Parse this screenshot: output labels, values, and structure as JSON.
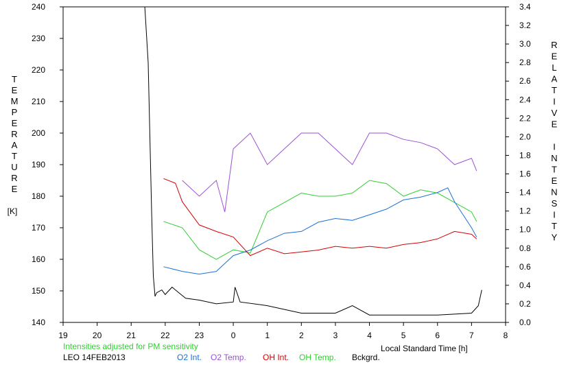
{
  "chart_data": {
    "type": "line",
    "xlabel": "Local Standard Time [h]",
    "ylabel_left": "TEMPERATURE",
    "ylabel_left_unit": "[K]",
    "ylabel_right": "RELATIVE INTENSITY",
    "note": "Intensities adjusted for PM sensitivity",
    "station_date": "LEO 14FEB2013",
    "x_ticks": [
      "19",
      "20",
      "21",
      "22",
      "23",
      "0",
      "1",
      "2",
      "3",
      "4",
      "5",
      "6",
      "7",
      "8"
    ],
    "xlim": [
      19,
      32
    ],
    "ylim_left": [
      140,
      240
    ],
    "y_ticks_left": [
      "140",
      "150",
      "160",
      "170",
      "180",
      "190",
      "200",
      "210",
      "220",
      "230",
      "240"
    ],
    "ylim_right": [
      0,
      3.4
    ],
    "y_ticks_right": [
      "0.0",
      "0.2",
      "0.4",
      "0.6",
      "0.8",
      "1.0",
      "1.2",
      "1.4",
      "1.6",
      "1.8",
      "2.0",
      "2.2",
      "2.4",
      "2.6",
      "2.8",
      "3.0",
      "3.2",
      "3.4"
    ],
    "grid": false,
    "legend_position": "bottom",
    "legend": [
      {
        "label": "O2 Int.",
        "color": "#1a6fd6"
      },
      {
        "label": "O2 Temp.",
        "color": "#9b4fd6"
      },
      {
        "label": "OH Int.",
        "color": "#d40000"
      },
      {
        "label": "OH Temp.",
        "color": "#2fcf2f"
      },
      {
        "label": "Bckgrd.",
        "color": "#000000"
      }
    ],
    "series": [
      {
        "name": "O2 Temp.",
        "axis": "left",
        "color": "#9b4fd6",
        "x": [
          22.5,
          23.0,
          23.5,
          23.75,
          24.0,
          24.5,
          25.0,
          25.5,
          26.0,
          26.5,
          27.0,
          27.5,
          28.0,
          28.5,
          29.0,
          29.5,
          30.0,
          30.5,
          31.0,
          31.15
        ],
        "y": [
          185,
          180,
          185,
          175,
          195,
          200,
          190,
          195,
          200,
          200,
          195,
          190,
          200,
          200,
          198,
          197,
          195,
          190,
          192,
          188
        ]
      },
      {
        "name": "OH Temp.",
        "axis": "left",
        "color": "#2fcf2f",
        "x": [
          21.95,
          22.5,
          23.0,
          23.5,
          24.0,
          24.5,
          25.0,
          25.5,
          26.0,
          26.5,
          27.0,
          27.5,
          28.0,
          28.5,
          29.0,
          29.5,
          30.0,
          30.5,
          31.0,
          31.15
        ],
        "y": [
          172,
          170,
          163,
          160,
          163,
          162,
          175,
          178,
          181,
          180,
          180,
          181,
          185,
          184,
          180,
          182,
          181,
          178,
          175,
          172
        ]
      },
      {
        "name": "O2 Int.",
        "axis": "right",
        "color": "#1a6fd6",
        "x": [
          21.95,
          22.5,
          23.0,
          23.5,
          24.0,
          24.5,
          25.0,
          25.5,
          26.0,
          26.5,
          27.0,
          27.5,
          28.0,
          28.5,
          29.0,
          29.5,
          30.0,
          30.3,
          30.5,
          31.0,
          31.15
        ],
        "y": [
          0.6,
          0.55,
          0.52,
          0.55,
          0.72,
          0.78,
          0.88,
          0.96,
          0.98,
          1.08,
          1.12,
          1.1,
          1.16,
          1.22,
          1.32,
          1.35,
          1.4,
          1.45,
          1.3,
          1.02,
          0.92
        ]
      },
      {
        "name": "OH Int.",
        "axis": "right",
        "color": "#d40000",
        "x": [
          21.95,
          22.3,
          22.5,
          23.0,
          23.5,
          24.0,
          24.5,
          25.0,
          25.5,
          26.0,
          26.5,
          27.0,
          27.5,
          28.0,
          28.5,
          29.0,
          29.5,
          30.0,
          30.5,
          31.0,
          31.15
        ],
        "y": [
          1.55,
          1.5,
          1.3,
          1.05,
          0.98,
          0.92,
          0.72,
          0.8,
          0.74,
          0.76,
          0.78,
          0.82,
          0.8,
          0.82,
          0.8,
          0.84,
          0.86,
          0.9,
          0.98,
          0.95,
          0.9
        ]
      },
      {
        "name": "Bckgrd.",
        "axis": "right",
        "color": "#000000",
        "x": [
          21.4,
          21.5,
          21.6,
          21.65,
          21.7,
          21.75,
          21.9,
          22.0,
          22.2,
          22.4,
          22.6,
          23.0,
          23.5,
          24.0,
          24.05,
          24.2,
          25.0,
          26.0,
          27.0,
          27.5,
          28.0,
          29.0,
          30.0,
          31.0,
          31.2,
          31.3
        ],
        "y": [
          3.4,
          2.8,
          1.2,
          0.5,
          0.28,
          0.32,
          0.35,
          0.3,
          0.38,
          0.32,
          0.26,
          0.24,
          0.2,
          0.22,
          0.38,
          0.22,
          0.18,
          0.1,
          0.1,
          0.18,
          0.08,
          0.08,
          0.08,
          0.1,
          0.18,
          0.35
        ]
      }
    ]
  }
}
